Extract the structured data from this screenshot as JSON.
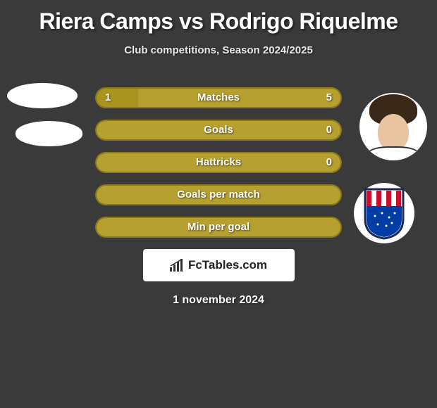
{
  "title": "Riera Camps vs Rodrigo Riquelme",
  "subtitle": "Club competitions, Season 2024/2025",
  "watermark": "FcTables.com",
  "date": "1 november 2024",
  "bar_colors": {
    "left": "#a8941f",
    "right": "#b5a030",
    "border": "#8a7a1a"
  },
  "text_color": "#ffffff",
  "background_color": "#3a3a3a",
  "stats": [
    {
      "label": "Matches",
      "left_val": "1",
      "right_val": "5",
      "left_pct": 17,
      "right_pct": 83
    },
    {
      "label": "Goals",
      "left_val": "",
      "right_val": "0",
      "left_pct": 0,
      "right_pct": 100
    },
    {
      "label": "Hattricks",
      "left_val": "",
      "right_val": "0",
      "left_pct": 0,
      "right_pct": 100
    },
    {
      "label": "Goals per match",
      "left_val": "",
      "right_val": "",
      "left_pct": 0,
      "right_pct": 100
    },
    {
      "label": "Min per goal",
      "left_val": "",
      "right_val": "",
      "left_pct": 0,
      "right_pct": 100
    }
  ],
  "avatars": {
    "left_count": 2,
    "right_player": true,
    "right_badge": {
      "stripes": [
        "#c8102e",
        "#ffffff"
      ],
      "bottom": "#003da5"
    }
  }
}
